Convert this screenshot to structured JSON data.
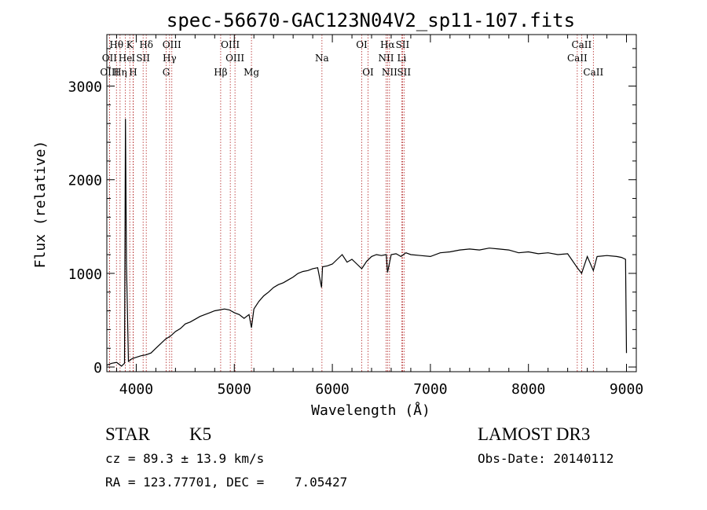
{
  "chart_data": {
    "type": "line",
    "title": "spec-56670-GAC123N04V2_sp11-107.fits",
    "xlabel": "Wavelength (Å)",
    "ylabel": "Flux (relative)",
    "xlim": [
      3700,
      9100
    ],
    "ylim": [
      -50,
      3550
    ],
    "x_ticks": [
      4000,
      5000,
      6000,
      7000,
      8000,
      9000
    ],
    "y_ticks": [
      0,
      1000,
      2000,
      3000
    ],
    "series": [
      {
        "name": "flux",
        "x": [
          3700,
          3750,
          3800,
          3850,
          3880,
          3890,
          3900,
          3920,
          3935,
          3945,
          3960,
          3990,
          4050,
          4100,
          4150,
          4200,
          4250,
          4300,
          4350,
          4400,
          4450,
          4500,
          4550,
          4600,
          4650,
          4700,
          4750,
          4800,
          4850,
          4900,
          4950,
          5000,
          5050,
          5100,
          5150,
          5175,
          5200,
          5250,
          5300,
          5350,
          5400,
          5450,
          5500,
          5550,
          5600,
          5650,
          5700,
          5750,
          5800,
          5850,
          5890,
          5900,
          5950,
          6000,
          6050,
          6100,
          6150,
          6200,
          6250,
          6300,
          6350,
          6400,
          6450,
          6500,
          6550,
          6563,
          6600,
          6650,
          6700,
          6750,
          6800,
          6900,
          7000,
          7100,
          7200,
          7300,
          7400,
          7500,
          7600,
          7700,
          7800,
          7900,
          8000,
          8100,
          8200,
          8300,
          8400,
          8498,
          8542,
          8600,
          8662,
          8700,
          8800,
          8900,
          8950,
          8990,
          9000
        ],
        "values": [
          20,
          40,
          50,
          10,
          40,
          2650,
          1100,
          60,
          70,
          80,
          90,
          100,
          120,
          130,
          150,
          200,
          250,
          300,
          330,
          380,
          410,
          460,
          480,
          510,
          540,
          560,
          580,
          600,
          610,
          620,
          610,
          580,
          560,
          520,
          560,
          420,
          620,
          700,
          760,
          800,
          850,
          880,
          900,
          930,
          960,
          1000,
          1020,
          1030,
          1050,
          1060,
          850,
          1070,
          1080,
          1100,
          1150,
          1200,
          1120,
          1150,
          1100,
          1050,
          1130,
          1180,
          1200,
          1190,
          1200,
          1010,
          1200,
          1210,
          1180,
          1220,
          1200,
          1190,
          1180,
          1220,
          1230,
          1250,
          1260,
          1250,
          1270,
          1260,
          1250,
          1220,
          1230,
          1210,
          1220,
          1200,
          1210,
          1060,
          1000,
          1180,
          1030,
          1180,
          1190,
          1180,
          1170,
          1150,
          150
        ]
      }
    ],
    "lines": [
      {
        "name": "Hθ",
        "wl": 3798,
        "row": 1
      },
      {
        "name": "OII",
        "wl": 3727,
        "row": 2
      },
      {
        "name": "OIII",
        "wl": 3727,
        "row": 3
      },
      {
        "name": "Hη",
        "wl": 3835,
        "row": 3
      },
      {
        "name": "K",
        "wl": 3934,
        "row": 1
      },
      {
        "name": "He",
        "wl": 3889,
        "row": 2
      },
      {
        "name": "H",
        "wl": 3968,
        "row": 3
      },
      {
        "name": "I",
        "wl": 3970,
        "row": 2
      },
      {
        "name": "SII",
        "wl": 4070,
        "row": 2
      },
      {
        "name": "Hδ",
        "wl": 4102,
        "row": 1
      },
      {
        "name": "OIII",
        "wl": 4363,
        "row": 1
      },
      {
        "name": "Hγ",
        "wl": 4340,
        "row": 2
      },
      {
        "name": "G",
        "wl": 4305,
        "row": 3
      },
      {
        "name": "Hβ",
        "wl": 4861,
        "row": 3
      },
      {
        "name": "OIII",
        "wl": 4959,
        "row": 1
      },
      {
        "name": "OIII",
        "wl": 5007,
        "row": 2
      },
      {
        "name": "Mg",
        "wl": 5175,
        "row": 3
      },
      {
        "name": "Na",
        "wl": 5894,
        "row": 2
      },
      {
        "name": "OI",
        "wl": 6300,
        "row": 1
      },
      {
        "name": "OI",
        "wl": 6364,
        "row": 3
      },
      {
        "name": "Hα",
        "wl": 6563,
        "row": 1
      },
      {
        "name": "NII",
        "wl": 6548,
        "row": 2
      },
      {
        "name": "NII",
        "wl": 6583,
        "row": 3
      },
      {
        "name": "SII",
        "wl": 6716,
        "row": 1
      },
      {
        "name": "Li",
        "wl": 6708,
        "row": 2
      },
      {
        "name": "SII",
        "wl": 6731,
        "row": 3
      },
      {
        "name": "CaII",
        "wl": 8542,
        "row": 1
      },
      {
        "name": "CaII",
        "wl": 8498,
        "row": 2
      },
      {
        "name": "CaII",
        "wl": 8662,
        "row": 3
      }
    ]
  },
  "info": {
    "class": "STAR",
    "subclass": "K5",
    "survey": "LAMOST DR3",
    "cz": "cz = 89.3 ± 13.9 km/s",
    "obs_date": "Obs-Date: 20140112",
    "coords": "RA = 123.77701, DEC =    7.05427"
  },
  "colors": {
    "line_marker": "#b22222",
    "spectrum": "#000000"
  }
}
